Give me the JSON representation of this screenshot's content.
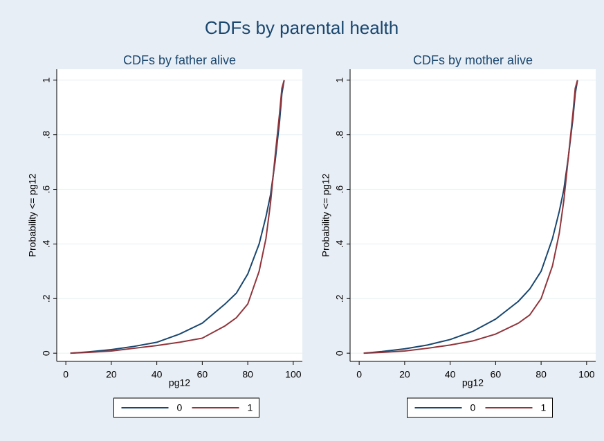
{
  "title": "CDFs by parental health",
  "chart_data": [
    {
      "type": "line",
      "title": "CDFs by father alive",
      "xlabel": "pg12",
      "ylabel": "Probability <= pg12",
      "x": [
        2,
        10,
        20,
        30,
        40,
        50,
        60,
        70,
        75,
        80,
        85,
        88,
        90,
        92,
        94,
        95,
        96
      ],
      "series": [
        {
          "name": "0",
          "color": "#1a476f",
          "values": [
            0,
            0.005,
            0.013,
            0.025,
            0.04,
            0.07,
            0.11,
            0.18,
            0.22,
            0.29,
            0.4,
            0.5,
            0.58,
            0.7,
            0.85,
            0.95,
            1
          ]
        },
        {
          "name": "1",
          "color": "#90353b",
          "values": [
            0,
            0.003,
            0.008,
            0.018,
            0.028,
            0.04,
            0.055,
            0.1,
            0.13,
            0.18,
            0.3,
            0.42,
            0.55,
            0.72,
            0.88,
            0.97,
            1
          ]
        }
      ],
      "xlim": [
        -4,
        104
      ],
      "xticks": [
        0,
        20,
        40,
        60,
        80,
        100
      ],
      "ylim": [
        -0.03,
        1.04
      ],
      "yticks": [
        0,
        {
          "value": 0.2,
          "label": ".2"
        },
        {
          "value": 0.4,
          "label": ".4"
        },
        {
          "value": 0.6,
          "label": ".6"
        },
        {
          "value": 0.8,
          "label": ".8"
        },
        1
      ],
      "grid": true,
      "legend": "bottom"
    },
    {
      "type": "line",
      "title": "CDFs by mother alive",
      "xlabel": "pg12",
      "ylabel": "Probability <= pg12",
      "x": [
        2,
        10,
        20,
        30,
        40,
        50,
        60,
        70,
        75,
        80,
        85,
        88,
        90,
        92,
        94,
        95,
        96
      ],
      "series": [
        {
          "name": "0",
          "color": "#1a476f",
          "values": [
            0,
            0.006,
            0.016,
            0.03,
            0.05,
            0.08,
            0.125,
            0.19,
            0.235,
            0.3,
            0.42,
            0.52,
            0.6,
            0.72,
            0.86,
            0.95,
            1
          ]
        },
        {
          "name": "1",
          "color": "#90353b",
          "values": [
            0,
            0.003,
            0.008,
            0.018,
            0.03,
            0.045,
            0.07,
            0.11,
            0.14,
            0.2,
            0.32,
            0.44,
            0.56,
            0.72,
            0.88,
            0.97,
            1
          ]
        }
      ],
      "xlim": [
        -4,
        104
      ],
      "xticks": [
        0,
        20,
        40,
        60,
        80,
        100
      ],
      "ylim": [
        -0.03,
        1.04
      ],
      "yticks": [
        0,
        {
          "value": 0.2,
          "label": ".2"
        },
        {
          "value": 0.4,
          "label": ".4"
        },
        {
          "value": 0.6,
          "label": ".6"
        },
        {
          "value": 0.8,
          "label": ".8"
        },
        1
      ],
      "grid": true,
      "legend": "bottom"
    }
  ]
}
